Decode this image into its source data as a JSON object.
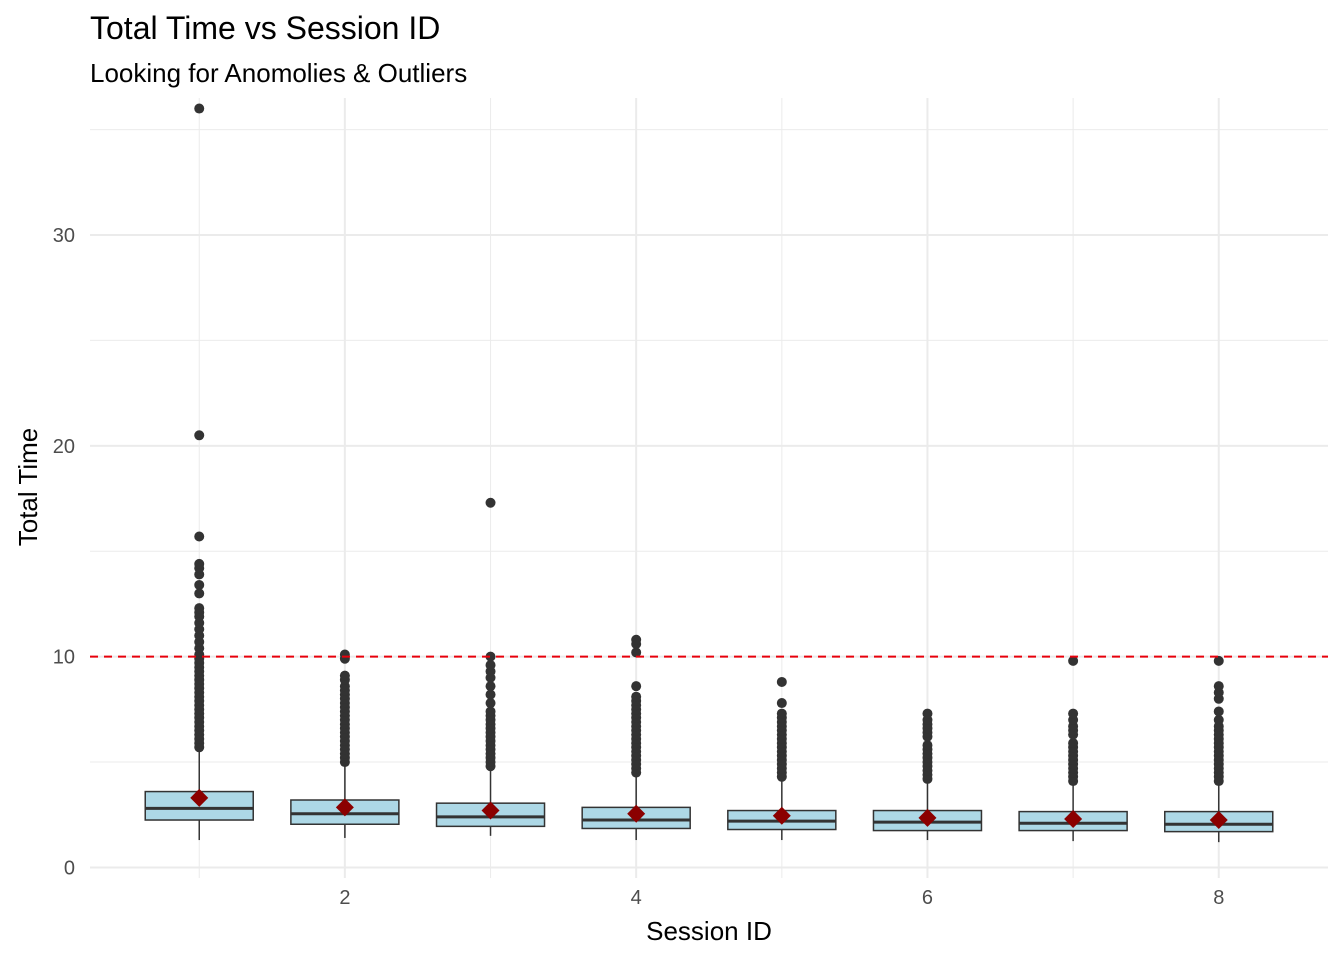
{
  "chart_data": {
    "type": "box",
    "title": "Total Time vs Session ID",
    "subtitle": "Looking for Anomolies & Outliers",
    "xlabel": "Session ID",
    "ylabel": "Total Time",
    "xlim": [
      0.25,
      8.75
    ],
    "ylim": [
      -0.5,
      36.5
    ],
    "x_ticks": [
      2,
      4,
      6,
      8
    ],
    "y_ticks": [
      0,
      10,
      20,
      30
    ],
    "grid": true,
    "reference_line": {
      "y": 10,
      "style": "dashed",
      "color": "#e8000b"
    },
    "colors": {
      "box_fill": "#add8e6",
      "box_stroke": "#333333",
      "mean_marker": "#8b0000",
      "outlier": "#333333",
      "grid": "#ebebeb"
    },
    "boxes": [
      {
        "session": 1,
        "min": 1.3,
        "q1": 2.25,
        "median": 2.8,
        "q3": 3.6,
        "max": 5.6,
        "mean": 3.3,
        "outliers": [
          5.7,
          5.9,
          6.1,
          6.3,
          6.5,
          6.7,
          6.9,
          7.1,
          7.3,
          7.5,
          7.7,
          7.9,
          8.1,
          8.3,
          8.5,
          8.7,
          8.9,
          9.1,
          9.3,
          9.5,
          9.7,
          9.9,
          10.1,
          10.4,
          10.7,
          11.0,
          11.3,
          11.6,
          11.9,
          12.1,
          12.3,
          13.0,
          13.4,
          13.9,
          14.2,
          14.4,
          15.7,
          20.5,
          36.0
        ]
      },
      {
        "session": 2,
        "min": 1.4,
        "q1": 2.05,
        "median": 2.55,
        "q3": 3.2,
        "max": 4.9,
        "mean": 2.85,
        "outliers": [
          5.0,
          5.2,
          5.4,
          5.6,
          5.8,
          6.0,
          6.2,
          6.4,
          6.6,
          6.8,
          7.0,
          7.2,
          7.4,
          7.6,
          7.8,
          8.0,
          8.2,
          8.4,
          8.6,
          8.9,
          9.1,
          9.9,
          10.1
        ]
      },
      {
        "session": 3,
        "min": 1.5,
        "q1": 1.95,
        "median": 2.4,
        "q3": 3.05,
        "max": 4.7,
        "mean": 2.7,
        "outliers": [
          4.8,
          5.0,
          5.2,
          5.4,
          5.6,
          5.8,
          6.0,
          6.2,
          6.4,
          6.6,
          6.8,
          7.0,
          7.2,
          7.4,
          7.8,
          8.2,
          8.6,
          9.0,
          9.3,
          9.6,
          10.0,
          17.3
        ]
      },
      {
        "session": 4,
        "min": 1.3,
        "q1": 1.85,
        "median": 2.25,
        "q3": 2.85,
        "max": 4.4,
        "mean": 2.55,
        "outliers": [
          4.5,
          4.7,
          4.9,
          5.1,
          5.3,
          5.5,
          5.7,
          5.9,
          6.1,
          6.3,
          6.5,
          6.7,
          6.9,
          7.1,
          7.3,
          7.5,
          7.7,
          7.9,
          8.1,
          8.6,
          10.2,
          10.6,
          10.8
        ]
      },
      {
        "session": 5,
        "min": 1.3,
        "q1": 1.8,
        "median": 2.2,
        "q3": 2.7,
        "max": 4.2,
        "mean": 2.45,
        "outliers": [
          4.3,
          4.5,
          4.7,
          4.9,
          5.1,
          5.3,
          5.5,
          5.7,
          5.9,
          6.1,
          6.3,
          6.5,
          6.7,
          6.9,
          7.1,
          7.3,
          7.8,
          8.8
        ]
      },
      {
        "session": 6,
        "min": 1.3,
        "q1": 1.75,
        "median": 2.15,
        "q3": 2.7,
        "max": 4.1,
        "mean": 2.35,
        "outliers": [
          4.2,
          4.4,
          4.6,
          4.8,
          5.0,
          5.2,
          5.4,
          5.6,
          5.8,
          6.2,
          6.4,
          6.6,
          6.8,
          7.0,
          7.3
        ]
      },
      {
        "session": 7,
        "min": 1.25,
        "q1": 1.75,
        "median": 2.1,
        "q3": 2.65,
        "max": 4.0,
        "mean": 2.3,
        "outliers": [
          4.1,
          4.3,
          4.5,
          4.7,
          4.9,
          5.1,
          5.3,
          5.5,
          5.7,
          5.9,
          6.3,
          6.5,
          6.7,
          7.0,
          7.3,
          9.8
        ]
      },
      {
        "session": 8,
        "min": 1.2,
        "q1": 1.7,
        "median": 2.05,
        "q3": 2.65,
        "max": 4.0,
        "mean": 2.25,
        "outliers": [
          4.1,
          4.3,
          4.5,
          4.7,
          4.9,
          5.1,
          5.3,
          5.5,
          5.7,
          5.9,
          6.1,
          6.3,
          6.5,
          6.7,
          7.0,
          7.4,
          8.0,
          8.3,
          8.6,
          9.8
        ]
      }
    ]
  }
}
